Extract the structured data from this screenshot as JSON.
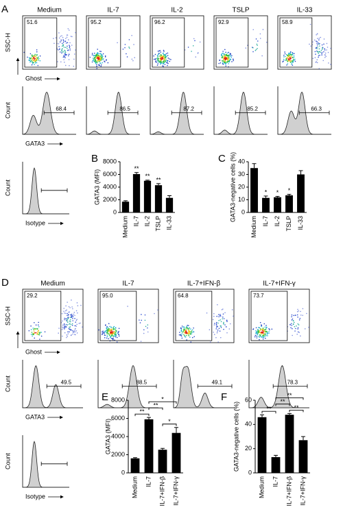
{
  "panels": {
    "A": {
      "label": "A",
      "conditions": [
        "Medium",
        "IL-7",
        "IL-2",
        "TSLP",
        "IL-33"
      ],
      "dot_gates": [
        "51.6",
        "95.2",
        "96.2",
        "92.9",
        "58.9"
      ],
      "hist_gates": [
        "68.4",
        "86.5",
        "87.2",
        "85.2",
        "66.3"
      ],
      "dot_y_label": "SSC-H",
      "dot_x_label": "Ghost",
      "hist_y_label": "Count",
      "hist_x_label": "GATA3",
      "isotype_y_label": "Count",
      "isotype_x_label": "Isotype"
    },
    "D": {
      "label": "D",
      "conditions": [
        "Medium",
        "IL-7",
        "IL-7+IFN-β",
        "IL-7+IFN-γ"
      ],
      "dot_gates": [
        "29.2",
        "95.0",
        "64.8",
        "73.7"
      ],
      "hist_gates": [
        "49.5",
        "88.5",
        "49.1",
        "78.3"
      ],
      "dot_y_label": "SSC-H",
      "dot_x_label": "Ghost",
      "hist_y_label": "Count",
      "hist_x_label": "GATA3",
      "isotype_y_label": "Count",
      "isotype_x_label": "Isotype"
    }
  },
  "chart_data": [
    {
      "type": "bar",
      "label": "B",
      "y_label": "GATA3 (MFI)",
      "color": "#000000",
      "categories": [
        "Medium",
        "IL-7",
        "IL-2",
        "TSLP",
        "IL-33"
      ],
      "values": [
        1700,
        6050,
        5000,
        4300,
        2300
      ],
      "errors": [
        150,
        250,
        100,
        250,
        350
      ],
      "annotations": [
        null,
        "**",
        "**",
        "**",
        null
      ],
      "ylim": [
        0,
        8000
      ],
      "yticks": [
        0,
        2000,
        4000,
        6000,
        8000
      ]
    },
    {
      "type": "bar",
      "label": "C",
      "y_label": "GATA3-negative cells (%)",
      "color": "#000000",
      "categories": [
        "Medium",
        "IL-7",
        "IL-2",
        "TSLP",
        "IL-33"
      ],
      "values": [
        35,
        11.5,
        12,
        13.5,
        30
      ],
      "errors": [
        3.5,
        1.5,
        0.7,
        0.8,
        3
      ],
      "annotations": [
        null,
        "*",
        "*",
        "*",
        null
      ],
      "ylim": [
        0,
        40
      ],
      "yticks": [
        0,
        10,
        20,
        30,
        40
      ]
    },
    {
      "type": "bar",
      "label": "E",
      "y_label": "GATA3 (MFI)",
      "color": "#000000",
      "categories": [
        "Medium",
        "IL-7",
        "IL-7+IFN-β",
        "IL-7+IFN-γ"
      ],
      "values": [
        1600,
        5900,
        2550,
        4400
      ],
      "errors": [
        80,
        200,
        150,
        600
      ],
      "comparisons": [
        {
          "pair": [
            "Medium",
            "IL-7"
          ],
          "label": "**"
        },
        {
          "pair": [
            "IL-7",
            "IL-7+IFN-β"
          ],
          "label": "**"
        },
        {
          "pair": [
            "IL-7",
            "IL-7+IFN-γ"
          ],
          "label": "*"
        },
        {
          "pair": [
            "IL-7+IFN-β",
            "IL-7+IFN-γ"
          ],
          "label": "*"
        }
      ],
      "ylim": [
        0,
        8000
      ],
      "yticks": [
        0,
        2000,
        4000,
        6000,
        8000
      ]
    },
    {
      "type": "bar",
      "label": "F",
      "y_label": "GATA3-negative cells (%)",
      "color": "#000000",
      "categories": [
        "Medium",
        "IL-7",
        "IL-7+IFN-β",
        "IL-7+IFN-γ"
      ],
      "values": [
        46,
        13,
        48,
        27
      ],
      "errors": [
        2,
        1.5,
        1,
        3
      ],
      "comparisons": [
        {
          "pair": [
            "Medium",
            "IL-7"
          ],
          "label": "**"
        },
        {
          "pair": [
            "IL-7",
            "IL-7+IFN-β"
          ],
          "label": "**"
        },
        {
          "pair": [
            "IL-7",
            "IL-7+IFN-γ"
          ],
          "label": "**"
        },
        {
          "pair": [
            "IL-7+IFN-β",
            "IL-7+IFN-γ"
          ],
          "label": "**"
        }
      ],
      "ylim": [
        0,
        60
      ],
      "yticks": [
        0,
        20,
        40,
        60
      ]
    }
  ]
}
